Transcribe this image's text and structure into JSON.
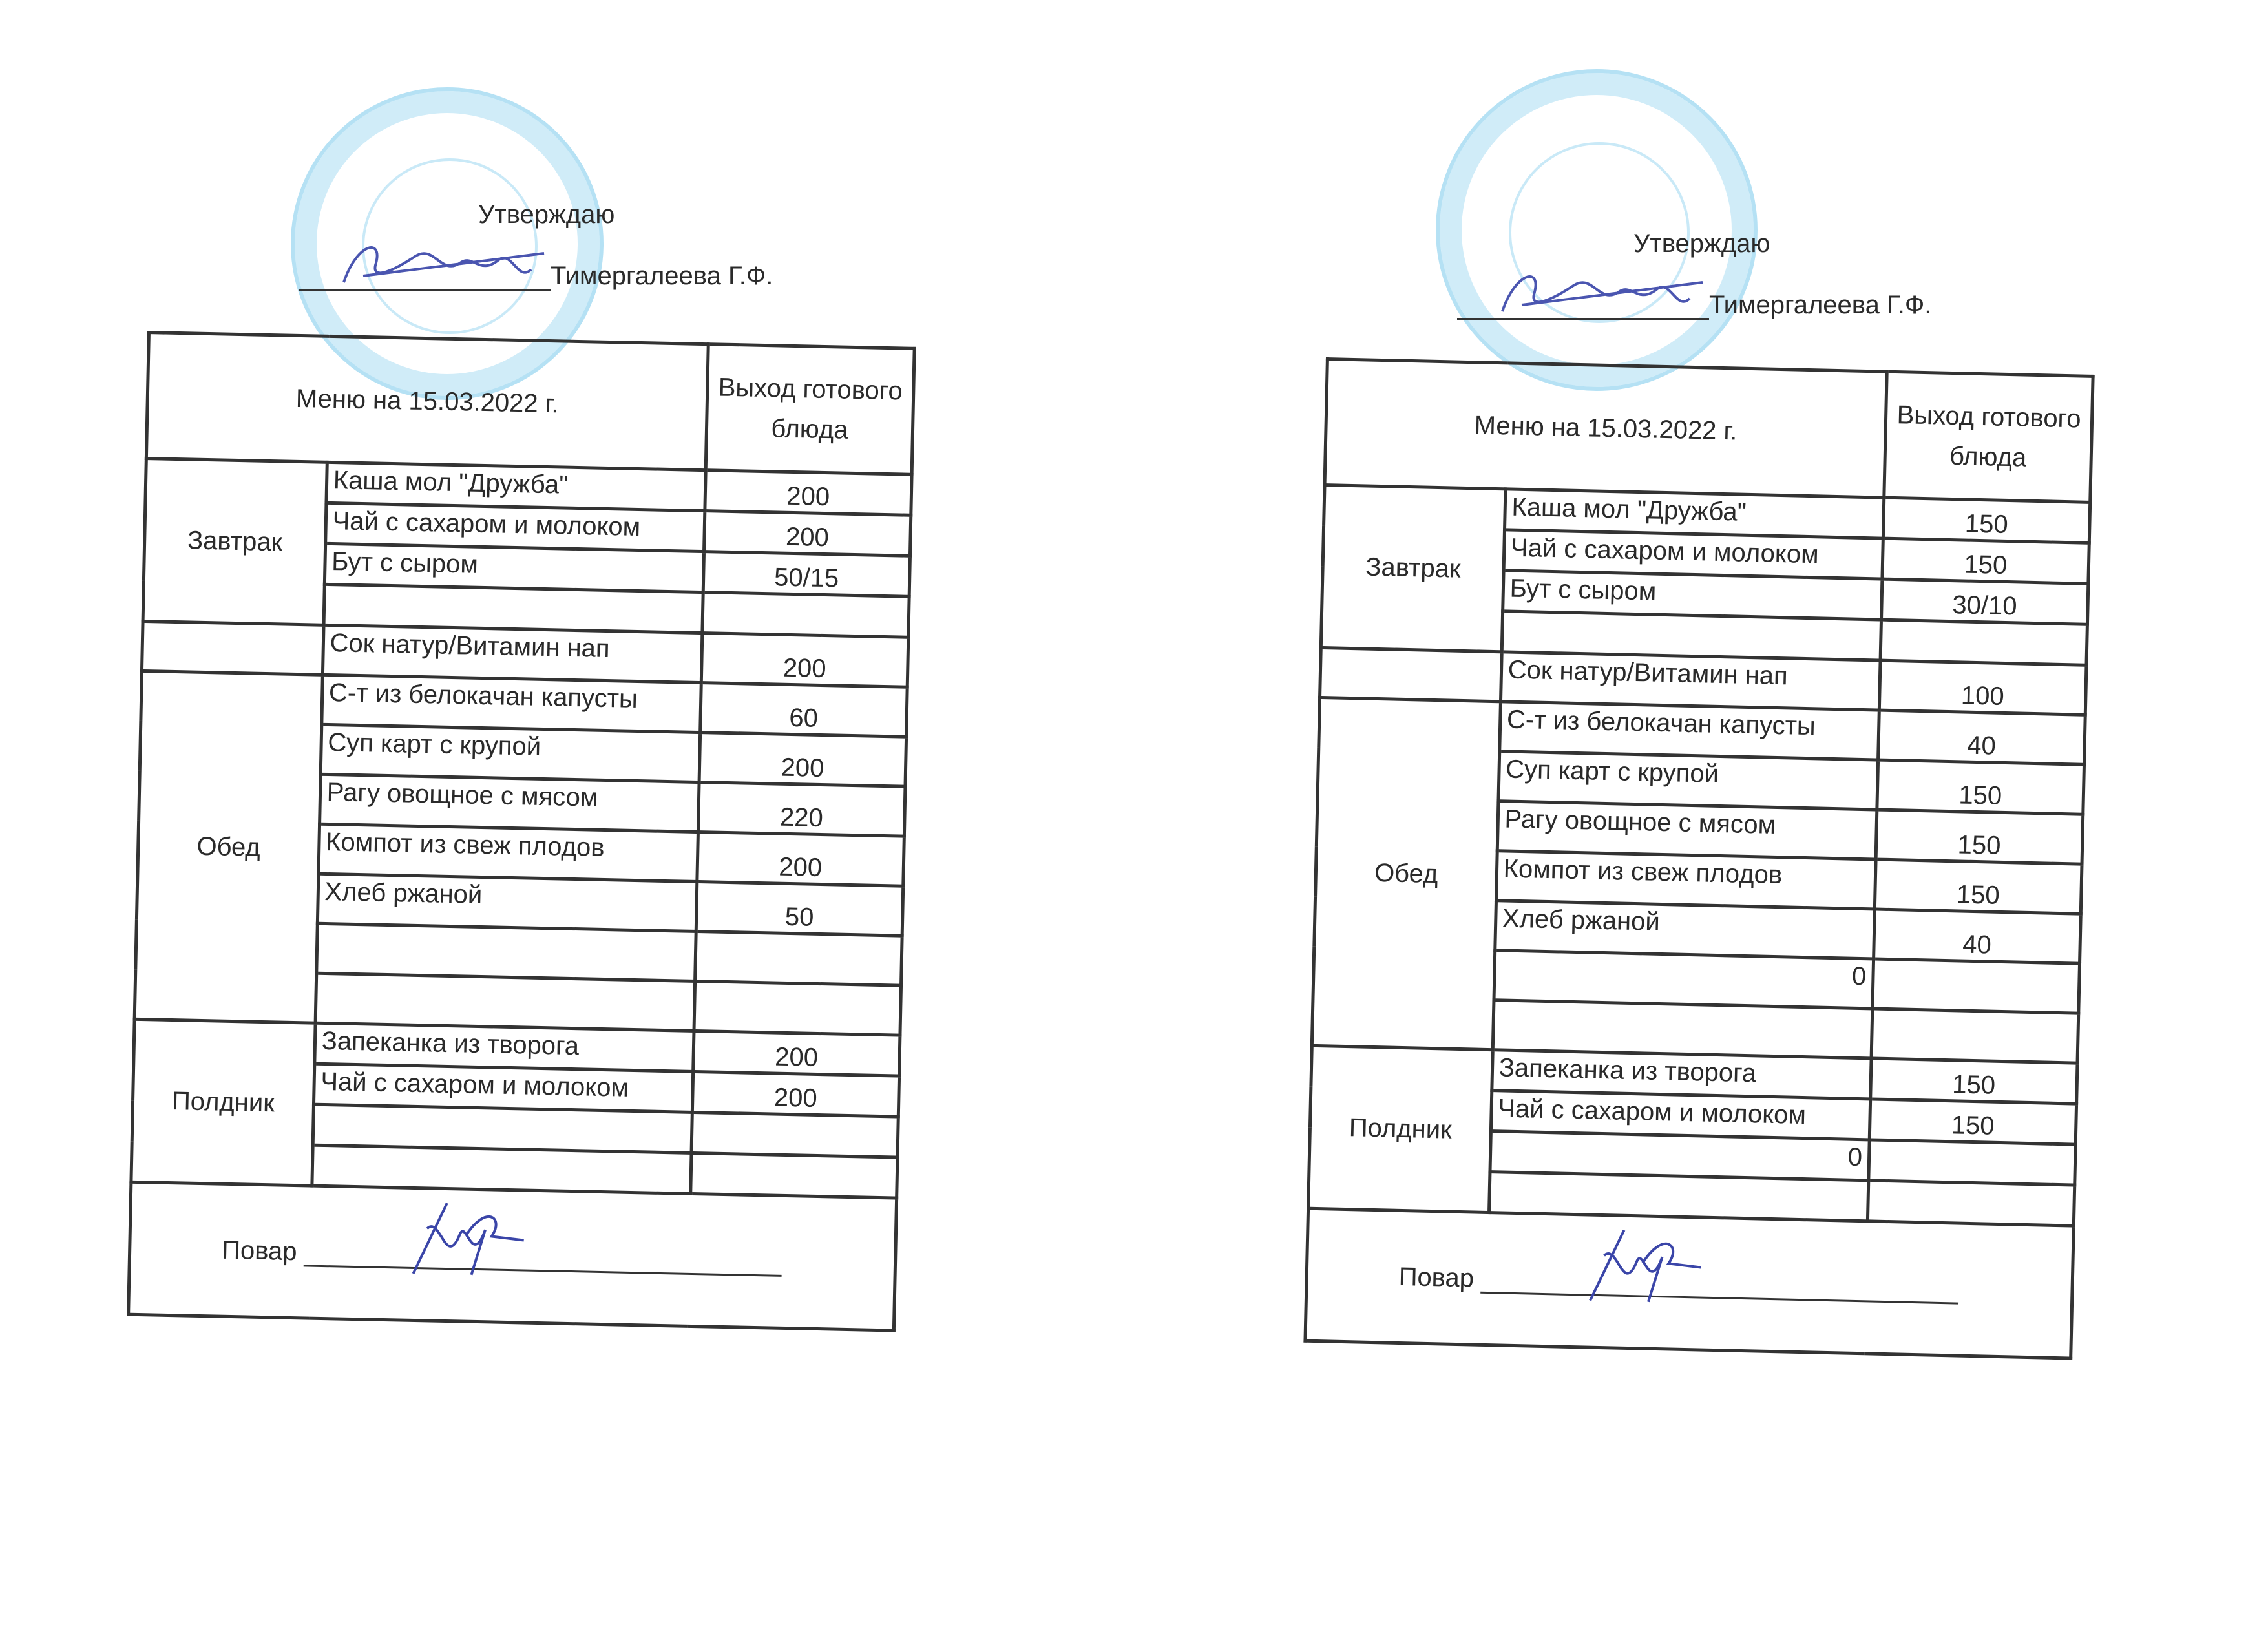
{
  "menus": [
    {
      "approve_label": "Утверждаю",
      "approver": "Тимергалеева Г.Ф.",
      "title": "Меню на 15.03.2022 г.",
      "yield_header": "Выход готового блюда",
      "sections": [
        {
          "name": "Завтрак",
          "rows": [
            {
              "dish": "Каша мол \"Дружба\"",
              "value": "200"
            },
            {
              "dish": "Чай с сахаром и молоком",
              "value": "200"
            },
            {
              "dish": "Бут с сыром",
              "value": "50/15"
            },
            {
              "dish": "",
              "value": ""
            }
          ]
        },
        {
          "name": "",
          "rows": [
            {
              "dish": "Сок натур/Витамин нап",
              "value": "200"
            }
          ]
        },
        {
          "name": "Обед",
          "rows": [
            {
              "dish": "С-т из белокачан капусты",
              "value": "60"
            },
            {
              "dish": "Суп карт с крупой",
              "value": "200"
            },
            {
              "dish": "Рагу овощное с мясом",
              "value": "220"
            },
            {
              "dish": "Компот из свеж плодов",
              "value": "200"
            },
            {
              "dish": "Хлеб ржаной",
              "value": "50"
            },
            {
              "dish": "",
              "value": ""
            },
            {
              "dish": "",
              "value": ""
            }
          ]
        },
        {
          "name": "Полдник",
          "rows": [
            {
              "dish": "Запеканка из творога",
              "value": "200"
            },
            {
              "dish": "Чай с сахаром и молоком",
              "value": "200"
            },
            {
              "dish": "",
              "value": ""
            },
            {
              "dish": "",
              "value": ""
            }
          ]
        }
      ],
      "cook_label": "Повар"
    },
    {
      "approve_label": "Утверждаю",
      "approver": "Тимергалеева Г.Ф.",
      "title": "Меню на 15.03.2022 г.",
      "yield_header": "Выход готового блюда",
      "sections": [
        {
          "name": "Завтрак",
          "rows": [
            {
              "dish": "Каша мол \"Дружба\"",
              "value": "150"
            },
            {
              "dish": "Чай с сахаром и молоком",
              "value": "150"
            },
            {
              "dish": "Бут с сыром",
              "value": "30/10"
            },
            {
              "dish": "",
              "value": ""
            }
          ]
        },
        {
          "name": "",
          "rows": [
            {
              "dish": "Сок натур/Витамин нап",
              "value": "100"
            }
          ]
        },
        {
          "name": "Обед",
          "rows": [
            {
              "dish": "С-т из белокачан капусты",
              "value": "40"
            },
            {
              "dish": "Суп карт с крупой",
              "value": "150"
            },
            {
              "dish": "Рагу овощное с мясом",
              "value": "150"
            },
            {
              "dish": "Компот из свеж плодов",
              "value": "150"
            },
            {
              "dish": "Хлеб ржаной",
              "value": "40"
            },
            {
              "dish": "0",
              "value": ""
            },
            {
              "dish": "",
              "value": ""
            }
          ]
        },
        {
          "name": "Полдник",
          "rows": [
            {
              "dish": "Запеканка из творога",
              "value": "150"
            },
            {
              "dish": "Чай с сахаром и молоком",
              "value": "150"
            },
            {
              "dish": "0",
              "value": ""
            },
            {
              "dish": "",
              "value": ""
            }
          ]
        }
      ],
      "cook_label": "Повар"
    }
  ]
}
